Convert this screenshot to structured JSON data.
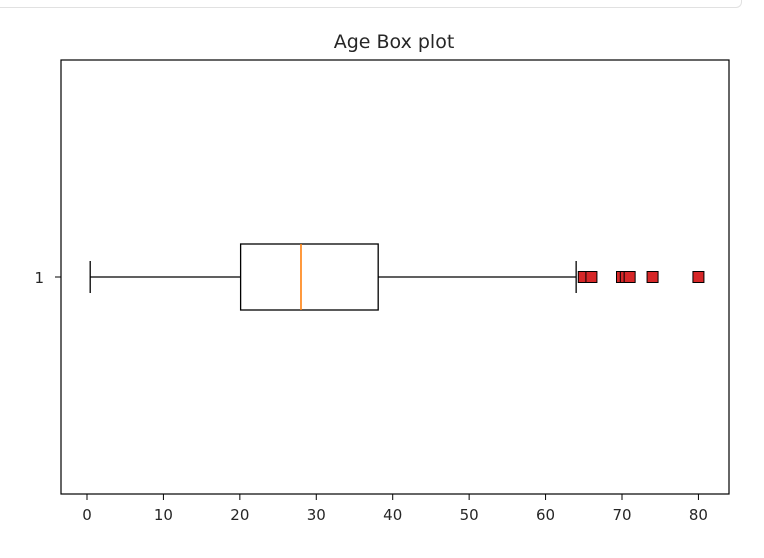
{
  "chart_data": {
    "type": "boxplot",
    "orientation": "horizontal",
    "title": "Age Box plot",
    "xlabel": "",
    "ylabel": "",
    "xlim": [
      -3.4,
      84
    ],
    "x_ticks": [
      0,
      10,
      20,
      30,
      40,
      50,
      60,
      70,
      80
    ],
    "x_tick_labels": [
      "0",
      "10",
      "20",
      "30",
      "40",
      "50",
      "60",
      "70",
      "80"
    ],
    "categories": [
      "1"
    ],
    "boxes": [
      {
        "category": "1",
        "whisker_low": 0.42,
        "q1": 20.1,
        "median": 28.0,
        "q3": 38.1,
        "whisker_high": 64.0,
        "outliers": [
          65,
          66,
          70,
          70.5,
          71,
          74,
          80
        ]
      }
    ],
    "grid": false,
    "colors": {
      "box": "#000000",
      "median": "#ff7f0e",
      "outlier_fill": "#d62728",
      "outlier_edge": "#000000",
      "axis": "#000000",
      "text": "#262626"
    }
  }
}
